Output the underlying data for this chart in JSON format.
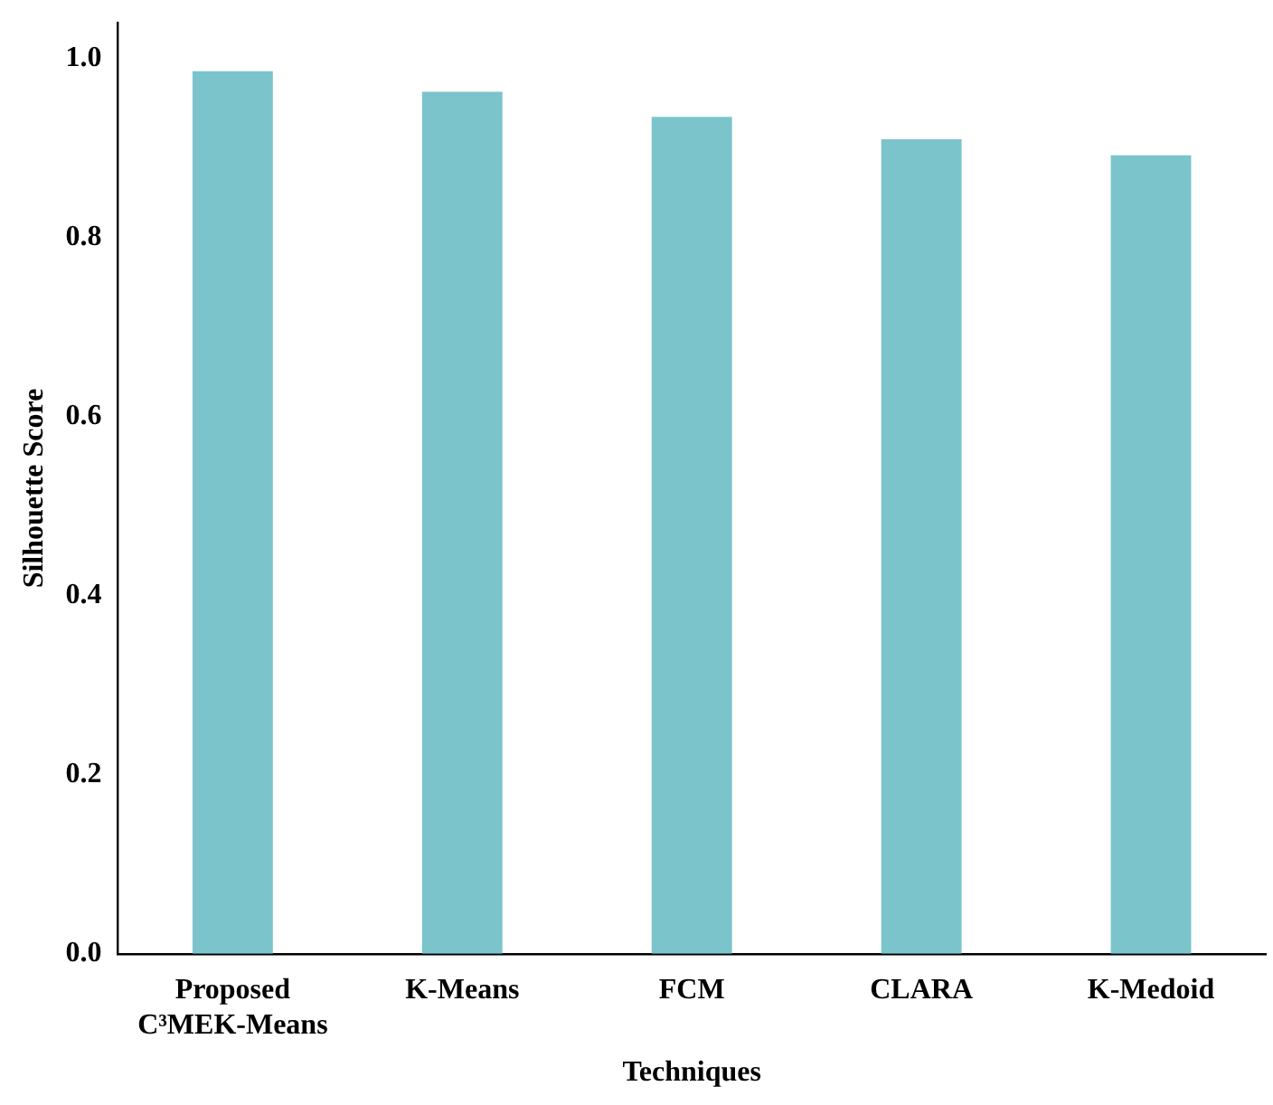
{
  "chart_data": {
    "type": "bar",
    "xlabel": "Techniques",
    "ylabel": "Silhouette Score",
    "categories": [
      "Proposed\nC³MEK-Means",
      "K-Means",
      "FCM",
      "CLARA",
      "K-Medoid"
    ],
    "series": [
      {
        "color": "#7bc4cc",
        "values": [
          0.986,
          0.963,
          0.935,
          0.91,
          0.892
        ]
      }
    ],
    "ylim": [
      0,
      1.04
    ],
    "yticks": [
      {
        "value": 0,
        "label": "0.0"
      },
      0.2,
      0.4,
      0.6,
      0.8,
      {
        "value": 1,
        "label": "1.0"
      }
    ],
    "grid": false,
    "legend": false
  }
}
